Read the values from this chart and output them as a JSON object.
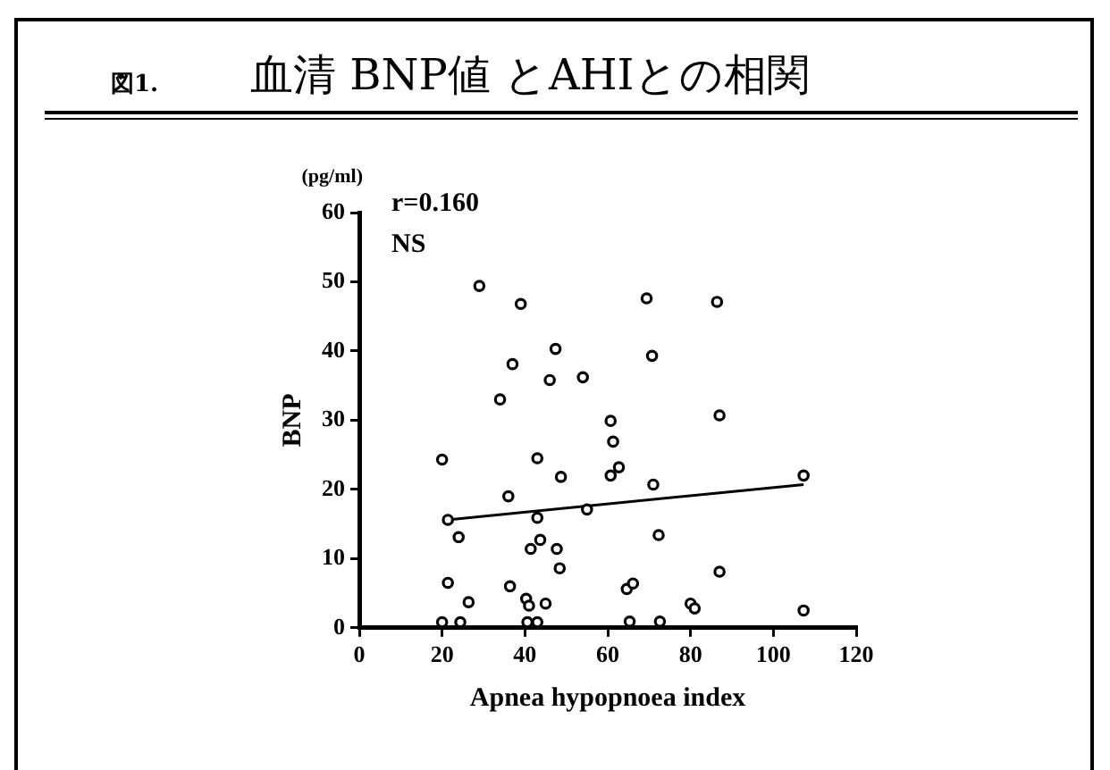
{
  "chart_data": {
    "type": "scatter",
    "title": "血清 BNP値 とAHIとの相関",
    "xlabel": "Apnea hypopnoea index",
    "ylabel": "BNP",
    "annotations": [
      "図1.",
      "(pg/ml)",
      "r=0.160",
      "NS"
    ],
    "series": [
      {
        "type": "scatter",
        "color": "#000000",
        "marker": "circle",
        "x": [
          29,
          39,
          47.4,
          37,
          46,
          34,
          20,
          43,
          48.7,
          36,
          21.4,
          43,
          24,
          43.7,
          41.4,
          47.7,
          48.4,
          21.4,
          36.4,
          26.4,
          40.3,
          41,
          45,
          20,
          24.4,
          40.6,
          43,
          69.4,
          86.4,
          70.7,
          54,
          60.7,
          87,
          61.3,
          62.7,
          60.7,
          107.3,
          71,
          55,
          72.3,
          87,
          64.6,
          66.1,
          80,
          81,
          107.3,
          65.3,
          72.6
        ],
        "values": [
          49.4,
          46.8,
          40.3,
          38.1,
          35.8,
          33,
          24.3,
          24.5,
          21.8,
          19,
          15.6,
          15.9,
          13.1,
          12.7,
          11.4,
          11.4,
          8.6,
          6.5,
          6,
          3.7,
          4.2,
          3.2,
          3.5,
          0.8,
          0.8,
          0.8,
          0.8,
          47.6,
          47.1,
          39.3,
          36.2,
          29.9,
          30.7,
          26.9,
          23.2,
          22,
          22,
          20.7,
          17.1,
          13.4,
          8.1,
          5.6,
          6.4,
          3.5,
          2.8,
          2.5,
          0.9,
          0.9
        ]
      },
      {
        "type": "line",
        "color": "#000000",
        "marker": "none",
        "x": [
          21.4,
          107.3
        ],
        "values": [
          15.6,
          20.7
        ]
      }
    ],
    "xlim": [
      0,
      120
    ],
    "xticks": [
      0,
      20,
      40,
      60,
      80,
      100,
      120
    ],
    "ylim": [
      0,
      60
    ],
    "yticks": [
      0,
      10,
      20,
      30,
      40,
      50,
      60
    ],
    "grid": false,
    "legend": false
  }
}
